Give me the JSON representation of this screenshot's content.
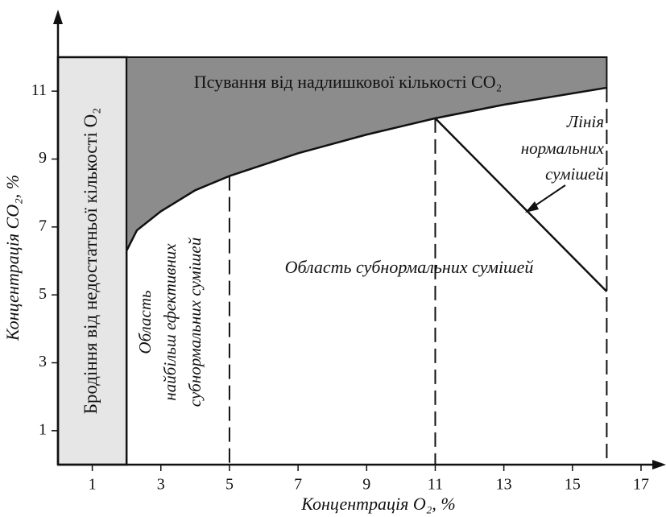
{
  "chart_data": {
    "type": "line",
    "xlabel": "Концентрація O₂, %",
    "ylabel": "Концентрація CO₂, %",
    "xlim": [
      0,
      17
    ],
    "ylim": [
      0,
      12
    ],
    "xticks": [
      1,
      3,
      5,
      7,
      9,
      11,
      13,
      15,
      17
    ],
    "yticks": [
      1,
      3,
      5,
      7,
      9,
      11
    ],
    "fermentation_zone": {
      "label": "Бродіння від недостатньої кількості O₂",
      "xlim": [
        0,
        2
      ]
    },
    "excess_zone": {
      "label": "Псування від надлишкової кількості CO₂",
      "top": 12
    },
    "series": [
      {
        "color": "#111111",
        "x": [
          2,
          2.3,
          3,
          4,
          5,
          7,
          9,
          11,
          13,
          16
        ],
        "values": [
          6.3,
          6.9,
          7.46,
          8.08,
          8.5,
          9.17,
          9.72,
          10.2,
          10.6,
          11.1
        ]
      },
      {
        "color": "#111111",
        "x": [
          11,
          16
        ],
        "values": [
          10.2,
          5.1
        ]
      }
    ],
    "dividers": [
      5,
      11,
      16
    ],
    "annotations": {
      "optimal": [
        "Область",
        "найбільш ефективних",
        "субнормальних сумішей"
      ],
      "subnormal": "Область субнормальних сумішей",
      "normal_line": [
        "Лінія",
        "нормальних",
        "сумішей"
      ]
    }
  }
}
